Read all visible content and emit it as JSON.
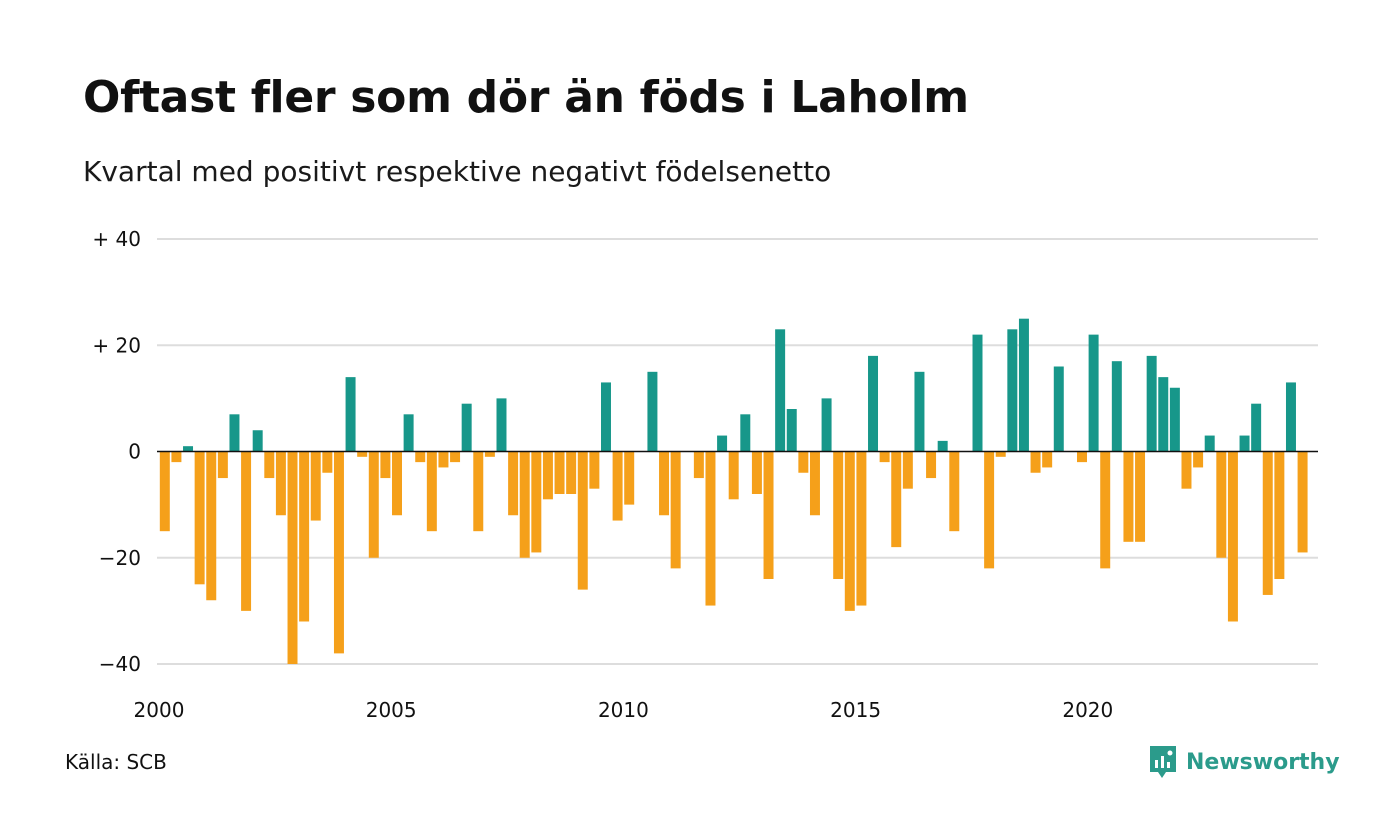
{
  "title": "Oftast fler som dör än föds i Laholm",
  "subtitle": "Kvartal med positivt respektive negativt födelsenetto",
  "source": "Källa: SCB",
  "brand": {
    "name": "Newsworthy",
    "icon": "newsworthy-logo-icon",
    "color": "#2b9b8b"
  },
  "colors": {
    "positive": "#17978a",
    "negative": "#f5a01a",
    "grid": "#dddddd",
    "zero": "#111111"
  },
  "chart_data": {
    "type": "bar",
    "title": "Oftast fler som dör än föds i Laholm",
    "subtitle": "Kvartal med positivt respektive negativt födelsenetto",
    "xlabel": "",
    "ylabel": "",
    "x_start": "2000-Q1",
    "frequency": "quarterly",
    "xlim": [
      2000,
      2025
    ],
    "ylim": [
      -40,
      40
    ],
    "y_ticks": [
      {
        "value": 40,
        "label": "+ 40"
      },
      {
        "value": 20,
        "label": "+ 20"
      },
      {
        "value": 0,
        "label": "0"
      },
      {
        "value": -20,
        "label": "−20"
      },
      {
        "value": -40,
        "label": "−40"
      }
    ],
    "x_ticks": [
      "2000",
      "2005",
      "2010",
      "2015",
      "2020"
    ],
    "grid": true,
    "values": [
      -15,
      -2,
      1,
      -25,
      -28,
      -5,
      7,
      -30,
      4,
      -5,
      -12,
      -40,
      -32,
      -13,
      -4,
      -38,
      14,
      -1,
      -20,
      -5,
      -12,
      7,
      -2,
      -15,
      -3,
      -2,
      9,
      -15,
      -1,
      10,
      -12,
      -20,
      -19,
      -9,
      -8,
      -8,
      -26,
      -7,
      13,
      -13,
      -10,
      0,
      15,
      -12,
      -22,
      0,
      -5,
      -29,
      3,
      -9,
      7,
      -8,
      -24,
      23,
      8,
      -4,
      -12,
      10,
      -24,
      -30,
      -29,
      18,
      -2,
      -18,
      -7,
      15,
      -5,
      2,
      -15,
      0,
      22,
      -22,
      -1,
      23,
      25,
      -4,
      -3,
      16,
      0,
      -2,
      22,
      -22,
      17,
      -17,
      -17,
      18,
      14,
      12,
      -7,
      -3,
      3,
      -20,
      -32,
      3,
      9,
      -27,
      -24,
      13,
      -19
    ]
  }
}
